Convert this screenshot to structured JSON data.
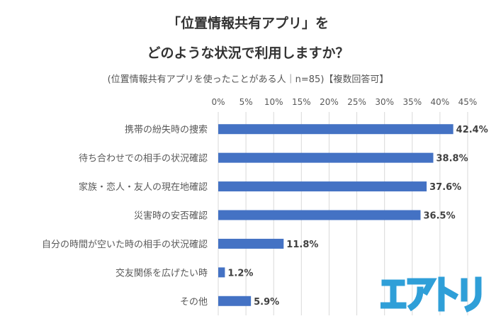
{
  "title_line1": "「位置情報共有アプリ」を",
  "title_line2": "どのような状況で利用しますか？",
  "subtitle": "(位置情報共有アプリを使ったことがある人｜n=85)【複数回答可】",
  "logo_text": "エアトリ",
  "chart_data": {
    "type": "bar",
    "orientation": "horizontal",
    "categories": [
      "携帯の紛失時の捜索",
      "待ち合わせでの相手の状況確認",
      "家族・恋人・友人の現在地確認",
      "災害時の安否確認",
      "自分の時間が空いた時の相手の状況確認",
      "交友関係を広げたい時",
      "その他"
    ],
    "values": [
      42.4,
      38.8,
      37.6,
      36.5,
      11.8,
      1.2,
      5.9
    ],
    "data_labels": [
      "42.4%",
      "38.8%",
      "37.6%",
      "36.5%",
      "11.8%",
      "1.2%",
      "5.9%"
    ],
    "x_ticks": [
      0,
      5,
      10,
      15,
      20,
      25,
      30,
      35,
      40,
      45
    ],
    "x_tick_labels": [
      "0%",
      "5%",
      "10%",
      "15%",
      "20%",
      "25%",
      "30%",
      "35%",
      "40%",
      "45%"
    ],
    "xlim": [
      0,
      45
    ],
    "axis_position": "top",
    "grid": true,
    "colors": {
      "bar": "#4472c4",
      "grid": "#d9d9d9",
      "logo": "#2f9fd8"
    }
  }
}
